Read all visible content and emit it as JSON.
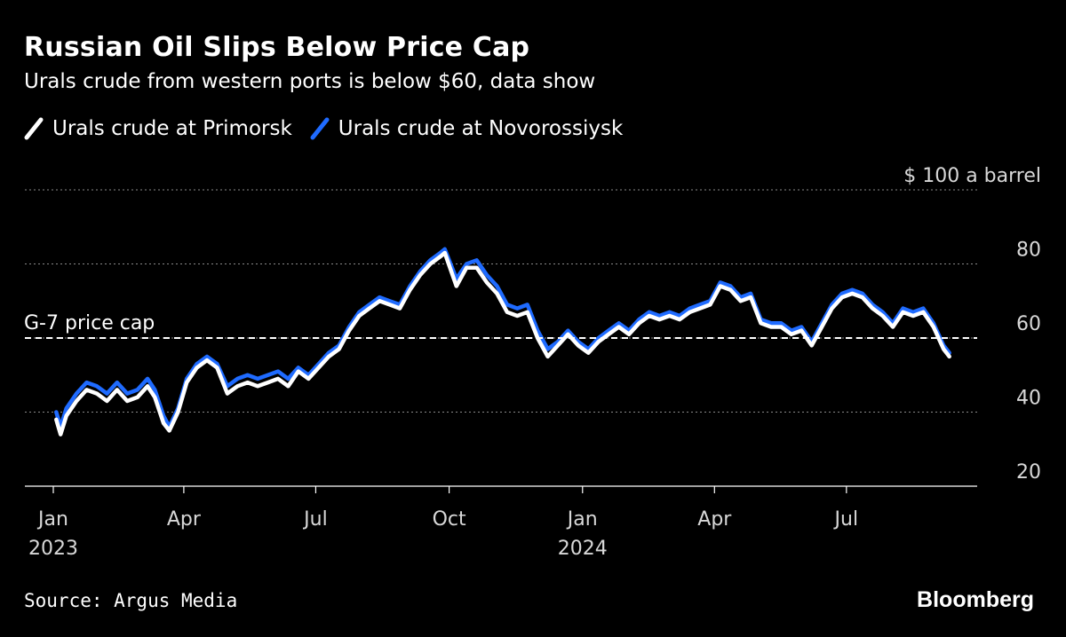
{
  "colors": {
    "background": "#000000",
    "text": "#ffffff",
    "gridline": "#8a8a8a",
    "series_primorsk": "#ffffff",
    "series_novorossiysk": "#1f6bff"
  },
  "header": {
    "title": "Russian Oil Slips Below Price Cap",
    "subtitle": "Urals crude from western ports is below $60, data show"
  },
  "footer": {
    "source": "Source: Argus Media",
    "brand": "Bloomberg"
  },
  "chart_data": {
    "type": "line",
    "title": "Russian Oil Slips Below Price Cap",
    "subtitle": "Urals crude from western ports is below $60, data show",
    "y_unit_label": "$ 100 a barrel",
    "ylim": [
      20,
      100
    ],
    "y_ticks": [
      {
        "value": 100,
        "label": "$ 100 a barrel"
      },
      {
        "value": 80,
        "label": "80"
      },
      {
        "value": 60,
        "label": "60"
      },
      {
        "value": 40,
        "label": "40"
      },
      {
        "value": 20,
        "label": "20"
      }
    ],
    "x_domain": [
      "2023-01-01",
      "2024-10-01"
    ],
    "x_ticks": [
      {
        "date": "2023-01-01",
        "label": "Jan",
        "year": "2023"
      },
      {
        "date": "2023-04-01",
        "label": "Apr",
        "year": ""
      },
      {
        "date": "2023-07-01",
        "label": "Jul",
        "year": ""
      },
      {
        "date": "2023-10-01",
        "label": "Oct",
        "year": ""
      },
      {
        "date": "2024-01-01",
        "label": "Jan",
        "year": "2024"
      },
      {
        "date": "2024-04-01",
        "label": "Apr",
        "year": ""
      },
      {
        "date": "2024-07-01",
        "label": "Jul",
        "year": ""
      }
    ],
    "grid": true,
    "legend_position": "top-left",
    "reference_line": {
      "value": 60,
      "label": "G-7 price cap",
      "style": "dashed"
    },
    "series": [
      {
        "name": "Urals crude at Primorsk",
        "color": "#ffffff",
        "points": [
          [
            "2023-01-03",
            38
          ],
          [
            "2023-01-06",
            34
          ],
          [
            "2023-01-10",
            39
          ],
          [
            "2023-01-17",
            43
          ],
          [
            "2023-01-24",
            46
          ],
          [
            "2023-01-31",
            45
          ],
          [
            "2023-02-07",
            43
          ],
          [
            "2023-02-14",
            46
          ],
          [
            "2023-02-21",
            43
          ],
          [
            "2023-02-28",
            44
          ],
          [
            "2023-03-07",
            47
          ],
          [
            "2023-03-12",
            44
          ],
          [
            "2023-03-18",
            37
          ],
          [
            "2023-03-22",
            35
          ],
          [
            "2023-03-28",
            40
          ],
          [
            "2023-04-03",
            48
          ],
          [
            "2023-04-10",
            52
          ],
          [
            "2023-04-17",
            54
          ],
          [
            "2023-04-24",
            52
          ],
          [
            "2023-05-01",
            45
          ],
          [
            "2023-05-08",
            47
          ],
          [
            "2023-05-15",
            48
          ],
          [
            "2023-05-22",
            47
          ],
          [
            "2023-05-29",
            48
          ],
          [
            "2023-06-05",
            49
          ],
          [
            "2023-06-12",
            47
          ],
          [
            "2023-06-19",
            51
          ],
          [
            "2023-06-26",
            49
          ],
          [
            "2023-07-03",
            52
          ],
          [
            "2023-07-10",
            55
          ],
          [
            "2023-07-17",
            57
          ],
          [
            "2023-07-24",
            62
          ],
          [
            "2023-07-31",
            66
          ],
          [
            "2023-08-07",
            68
          ],
          [
            "2023-08-14",
            70
          ],
          [
            "2023-08-21",
            69
          ],
          [
            "2023-08-28",
            68
          ],
          [
            "2023-09-04",
            73
          ],
          [
            "2023-09-11",
            77
          ],
          [
            "2023-09-18",
            80
          ],
          [
            "2023-09-25",
            82
          ],
          [
            "2023-09-28",
            83
          ],
          [
            "2023-10-06",
            74
          ],
          [
            "2023-10-13",
            79
          ],
          [
            "2023-10-20",
            79
          ],
          [
            "2023-10-27",
            75
          ],
          [
            "2023-11-03",
            72
          ],
          [
            "2023-11-10",
            67
          ],
          [
            "2023-11-17",
            66
          ],
          [
            "2023-11-24",
            67
          ],
          [
            "2023-12-01",
            60
          ],
          [
            "2023-12-08",
            55
          ],
          [
            "2023-12-15",
            58
          ],
          [
            "2023-12-22",
            61
          ],
          [
            "2023-12-29",
            58
          ],
          [
            "2024-01-05",
            56
          ],
          [
            "2024-01-12",
            59
          ],
          [
            "2024-01-19",
            61
          ],
          [
            "2024-01-26",
            63
          ],
          [
            "2024-02-02",
            61
          ],
          [
            "2024-02-09",
            64
          ],
          [
            "2024-02-16",
            66
          ],
          [
            "2024-02-23",
            65
          ],
          [
            "2024-03-01",
            66
          ],
          [
            "2024-03-08",
            65
          ],
          [
            "2024-03-15",
            67
          ],
          [
            "2024-03-22",
            68
          ],
          [
            "2024-03-29",
            69
          ],
          [
            "2024-04-05",
            74
          ],
          [
            "2024-04-12",
            73
          ],
          [
            "2024-04-19",
            70
          ],
          [
            "2024-04-26",
            71
          ],
          [
            "2024-05-03",
            64
          ],
          [
            "2024-05-10",
            63
          ],
          [
            "2024-05-17",
            63
          ],
          [
            "2024-05-24",
            61
          ],
          [
            "2024-05-31",
            62
          ],
          [
            "2024-06-07",
            58
          ],
          [
            "2024-06-14",
            63
          ],
          [
            "2024-06-21",
            68
          ],
          [
            "2024-06-28",
            71
          ],
          [
            "2024-07-05",
            72
          ],
          [
            "2024-07-12",
            71
          ],
          [
            "2024-07-19",
            68
          ],
          [
            "2024-07-26",
            66
          ],
          [
            "2024-08-02",
            63
          ],
          [
            "2024-08-09",
            67
          ],
          [
            "2024-08-16",
            66
          ],
          [
            "2024-08-23",
            67
          ],
          [
            "2024-08-30",
            63
          ],
          [
            "2024-09-06",
            57
          ],
          [
            "2024-09-10",
            55
          ]
        ]
      },
      {
        "name": "Urals crude at Novorossiysk",
        "color": "#1f6bff",
        "points": [
          [
            "2023-01-03",
            40
          ],
          [
            "2023-01-06",
            36
          ],
          [
            "2023-01-10",
            41
          ],
          [
            "2023-01-17",
            45
          ],
          [
            "2023-01-24",
            48
          ],
          [
            "2023-01-31",
            47
          ],
          [
            "2023-02-07",
            45
          ],
          [
            "2023-02-14",
            48
          ],
          [
            "2023-02-21",
            45
          ],
          [
            "2023-02-28",
            46
          ],
          [
            "2023-03-07",
            49
          ],
          [
            "2023-03-12",
            46
          ],
          [
            "2023-03-18",
            39
          ],
          [
            "2023-03-22",
            36
          ],
          [
            "2023-03-28",
            41
          ],
          [
            "2023-04-03",
            49
          ],
          [
            "2023-04-10",
            53
          ],
          [
            "2023-04-17",
            55
          ],
          [
            "2023-04-24",
            53
          ],
          [
            "2023-05-01",
            47
          ],
          [
            "2023-05-08",
            49
          ],
          [
            "2023-05-15",
            50
          ],
          [
            "2023-05-22",
            49
          ],
          [
            "2023-05-29",
            50
          ],
          [
            "2023-06-05",
            51
          ],
          [
            "2023-06-12",
            49
          ],
          [
            "2023-06-19",
            52
          ],
          [
            "2023-06-26",
            50
          ],
          [
            "2023-07-03",
            53
          ],
          [
            "2023-07-10",
            56
          ],
          [
            "2023-07-17",
            58
          ],
          [
            "2023-07-24",
            63
          ],
          [
            "2023-07-31",
            67
          ],
          [
            "2023-08-07",
            69
          ],
          [
            "2023-08-14",
            71
          ],
          [
            "2023-08-21",
            70
          ],
          [
            "2023-08-28",
            69
          ],
          [
            "2023-09-04",
            74
          ],
          [
            "2023-09-11",
            78
          ],
          [
            "2023-09-18",
            81
          ],
          [
            "2023-09-25",
            83
          ],
          [
            "2023-09-28",
            84
          ],
          [
            "2023-10-06",
            76
          ],
          [
            "2023-10-13",
            80
          ],
          [
            "2023-10-20",
            81
          ],
          [
            "2023-10-27",
            77
          ],
          [
            "2023-11-03",
            74
          ],
          [
            "2023-11-10",
            69
          ],
          [
            "2023-11-17",
            68
          ],
          [
            "2023-11-24",
            69
          ],
          [
            "2023-12-01",
            62
          ],
          [
            "2023-12-08",
            57
          ],
          [
            "2023-12-15",
            59
          ],
          [
            "2023-12-22",
            62
          ],
          [
            "2023-12-29",
            59
          ],
          [
            "2024-01-05",
            57
          ],
          [
            "2024-01-12",
            60
          ],
          [
            "2024-01-19",
            62
          ],
          [
            "2024-01-26",
            64
          ],
          [
            "2024-02-02",
            62
          ],
          [
            "2024-02-09",
            65
          ],
          [
            "2024-02-16",
            67
          ],
          [
            "2024-02-23",
            66
          ],
          [
            "2024-03-01",
            67
          ],
          [
            "2024-03-08",
            66
          ],
          [
            "2024-03-15",
            68
          ],
          [
            "2024-03-22",
            69
          ],
          [
            "2024-03-29",
            70
          ],
          [
            "2024-04-05",
            75
          ],
          [
            "2024-04-12",
            74
          ],
          [
            "2024-04-19",
            71
          ],
          [
            "2024-04-26",
            72
          ],
          [
            "2024-05-03",
            65
          ],
          [
            "2024-05-10",
            64
          ],
          [
            "2024-05-17",
            64
          ],
          [
            "2024-05-24",
            62
          ],
          [
            "2024-05-31",
            63
          ],
          [
            "2024-06-07",
            59
          ],
          [
            "2024-06-14",
            64
          ],
          [
            "2024-06-21",
            69
          ],
          [
            "2024-06-28",
            72
          ],
          [
            "2024-07-05",
            73
          ],
          [
            "2024-07-12",
            72
          ],
          [
            "2024-07-19",
            69
          ],
          [
            "2024-07-26",
            67
          ],
          [
            "2024-08-02",
            64
          ],
          [
            "2024-08-09",
            68
          ],
          [
            "2024-08-16",
            67
          ],
          [
            "2024-08-23",
            68
          ],
          [
            "2024-08-30",
            64
          ],
          [
            "2024-09-06",
            58
          ],
          [
            "2024-09-10",
            56
          ]
        ]
      }
    ]
  }
}
